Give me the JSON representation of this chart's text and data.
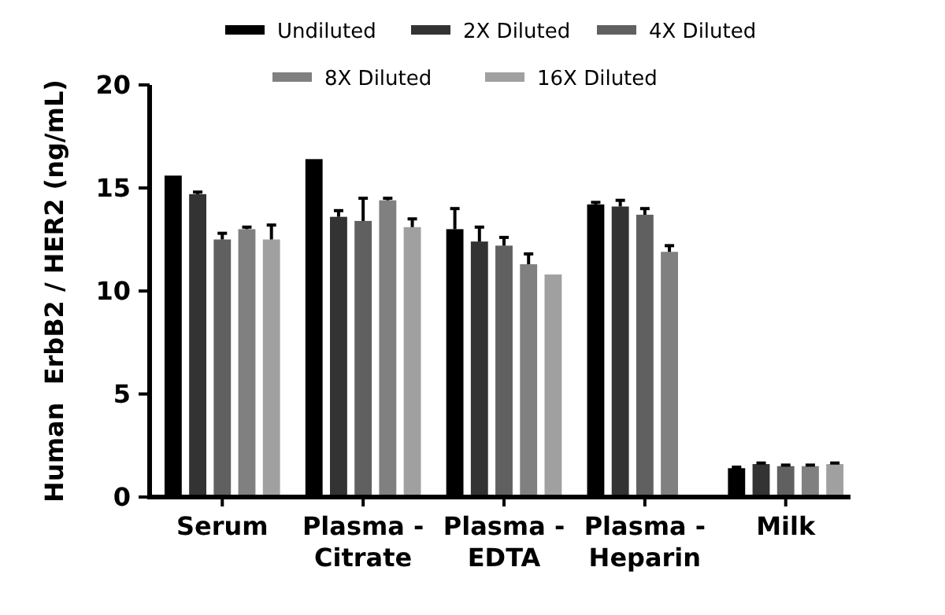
{
  "chart_data": {
    "type": "bar",
    "ylabel": "Human  ErbB2 / HER2 (ng/mL)",
    "categories": [
      "Serum",
      "Plasma - Citrate",
      "Plasma - EDTA",
      "Plasma - Heparin",
      "Milk"
    ],
    "series": [
      {
        "name": "Undiluted",
        "color": "#000000",
        "values": [
          15.6,
          16.4,
          13.0,
          14.2,
          1.4
        ],
        "errors": [
          null,
          null,
          1.0,
          0.1,
          0.05
        ]
      },
      {
        "name": "2X Diluted",
        "color": "#333333",
        "values": [
          14.7,
          13.6,
          12.4,
          14.1,
          1.6
        ],
        "errors": [
          0.1,
          0.3,
          0.7,
          0.3,
          0.05
        ]
      },
      {
        "name": "4X Diluted",
        "color": "#606060",
        "values": [
          12.5,
          13.4,
          12.2,
          13.7,
          1.5
        ],
        "errors": [
          0.3,
          1.1,
          0.4,
          0.3,
          0.05
        ]
      },
      {
        "name": "8X Diluted",
        "color": "#808080",
        "values": [
          13.0,
          14.4,
          11.3,
          11.9,
          1.5
        ],
        "errors": [
          0.1,
          0.1,
          0.5,
          0.3,
          0.05
        ]
      },
      {
        "name": "16X Diluted",
        "color": "#a0a0a0",
        "values": [
          12.5,
          13.1,
          10.8,
          null,
          1.6
        ],
        "errors": [
          0.7,
          0.4,
          null,
          null,
          0.05
        ]
      }
    ],
    "ylim": [
      0,
      20
    ],
    "yticks": [
      0,
      5,
      10,
      15,
      20
    ],
    "legend": "top",
    "grid": false
  }
}
